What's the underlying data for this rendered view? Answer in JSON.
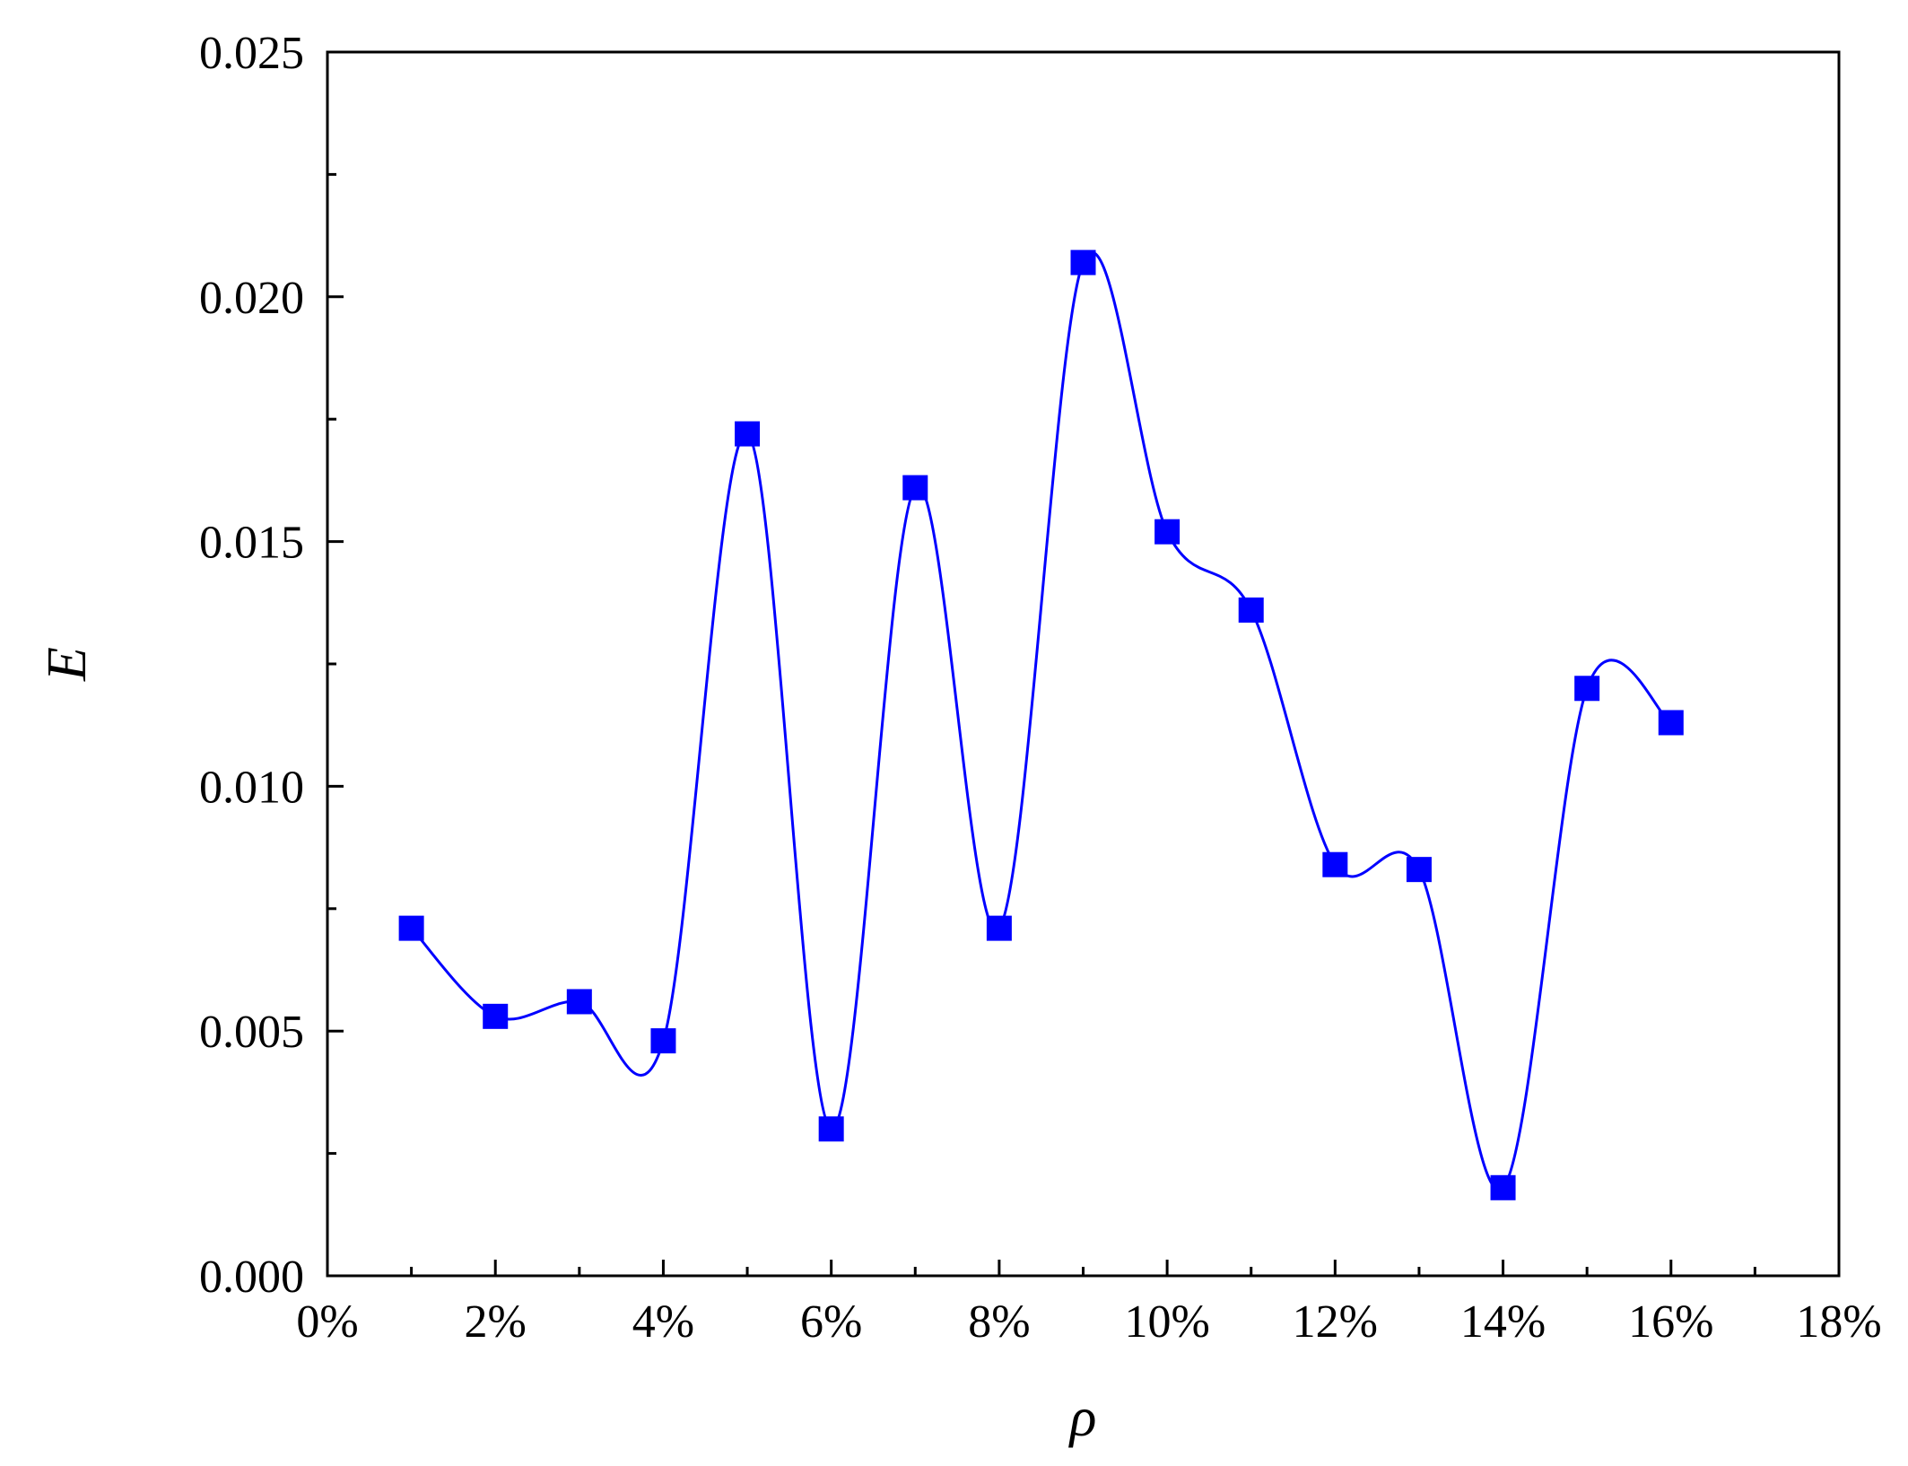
{
  "chart_data": {
    "type": "line",
    "xlabel": "ρ",
    "ylabel": "E",
    "xlim": [
      0,
      18
    ],
    "ylim": [
      0,
      0.025
    ],
    "x_ticks": [
      "0%",
      "2%",
      "4%",
      "6%",
      "8%",
      "10%",
      "12%",
      "14%",
      "16%",
      "18%"
    ],
    "y_ticks": [
      "0.000",
      "0.005",
      "0.010",
      "0.015",
      "0.020",
      "0.025"
    ],
    "marker": "square",
    "smoothed_line": true,
    "grid": false,
    "legend": "none",
    "series": [
      {
        "color": "#0000ff",
        "x": [
          1,
          2,
          3,
          4,
          5,
          6,
          7,
          8,
          9,
          10,
          11,
          12,
          13,
          14,
          15,
          16
        ],
        "y": [
          0.0071,
          0.0053,
          0.0056,
          0.0048,
          0.0172,
          0.003,
          0.0161,
          0.0071,
          0.0207,
          0.0152,
          0.0136,
          0.0084,
          0.0083,
          0.0018,
          0.012,
          0.0113
        ]
      }
    ]
  }
}
